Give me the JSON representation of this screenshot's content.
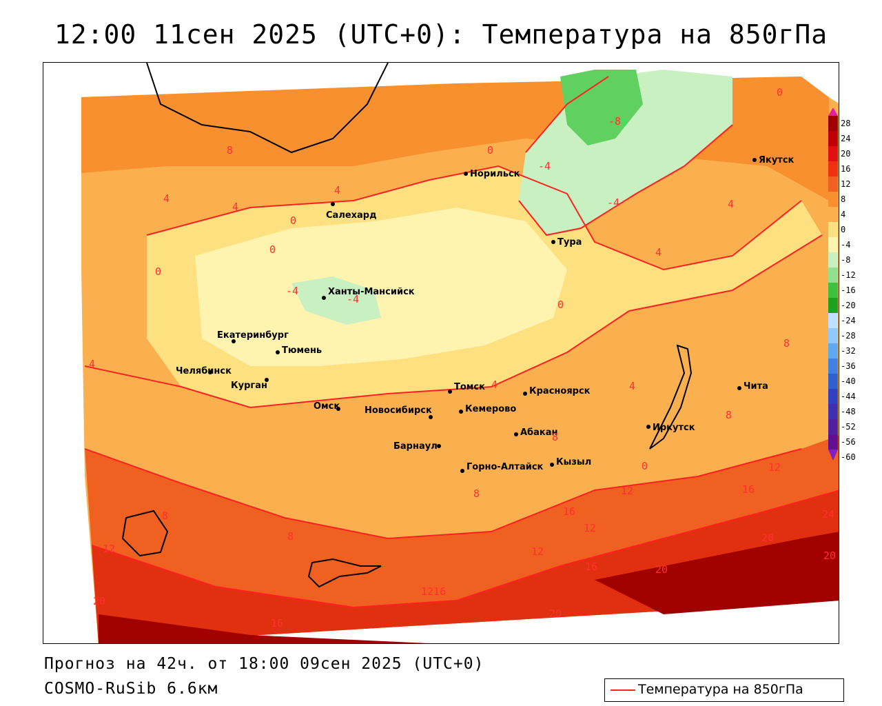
{
  "title": "12:00 11сен 2025 (UTC+0): Температура на 850гПа",
  "forecast_line": "Прогноз на 42ч. от 18:00 09сен 2025 (UTC+0)",
  "model_line": "COSMO-RuSib 6.6км",
  "legend_label": "Температура на 850гПа",
  "colorbar_ticks": [
    "28",
    "24",
    "20",
    "16",
    "12",
    "8",
    "4",
    "0",
    "-4",
    "-8",
    "-12",
    "-16",
    "-20",
    "-24",
    "-28",
    "-32",
    "-36",
    "-40",
    "-44",
    "-48",
    "-52",
    "-56",
    "-60"
  ],
  "colors": {
    "contour": "#ff2020",
    "warm_dark": "#a00000",
    "warm_mid": "#e03010",
    "warm": "#f06020",
    "orange": "#f89030",
    "light_orange": "#fbb050",
    "yellow": "#fde080",
    "pale_yellow": "#fff3b0",
    "pale_green": "#c8f0c0",
    "green": "#60d060"
  },
  "cities": [
    {
      "name": "Норильск"
    },
    {
      "name": "Якутск"
    },
    {
      "name": "Салехард"
    },
    {
      "name": "Тура"
    },
    {
      "name": "Ханты-Мансийск"
    },
    {
      "name": "Екатеринбург"
    },
    {
      "name": "Тюмень"
    },
    {
      "name": "Челябинск"
    },
    {
      "name": "Курган"
    },
    {
      "name": "Омск"
    },
    {
      "name": "Томск"
    },
    {
      "name": "Красноярск"
    },
    {
      "name": "Новосибирск"
    },
    {
      "name": "Кемерово"
    },
    {
      "name": "Барнаул"
    },
    {
      "name": "Абакан"
    },
    {
      "name": "Горно-Алтайск"
    },
    {
      "name": "Кызыл"
    },
    {
      "name": "Иркутск"
    },
    {
      "name": "Чита"
    }
  ],
  "isotherm_labels": [
    "0",
    "-8",
    "-4",
    "-4",
    "4",
    "8",
    "4",
    "4",
    "0",
    "4",
    "0",
    "0",
    "-4",
    "-4",
    "0",
    "0",
    "4",
    "4",
    "4",
    "4",
    "8",
    "8",
    "8",
    "12",
    "16",
    "12",
    "16",
    "12",
    "16",
    "20",
    "24",
    "20",
    "12",
    "20",
    "12",
    "16",
    "20",
    "1216",
    "20",
    "8",
    "8",
    "8",
    "0"
  ]
}
